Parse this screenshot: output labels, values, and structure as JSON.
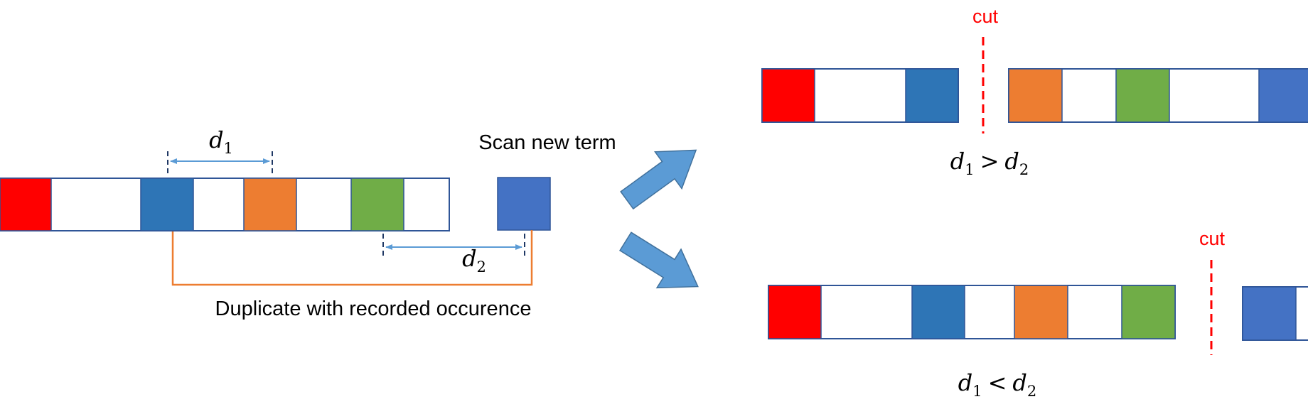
{
  "colors": {
    "red": "#ff0000",
    "darkblue": "#2e75b6",
    "orange": "#ed7d31",
    "green": "#70ad47",
    "lightblue": "#4472c4",
    "outline": "#2f5597",
    "dim": "#5b9bd5",
    "link": "#ed7d31",
    "arrow": "#5b9bd5",
    "cut": "#ff0000"
  },
  "left": {
    "scan_label": "Scan new term",
    "duplicate_label": "Duplicate with recorded occurence",
    "d1": {
      "var": "d",
      "sub": "1"
    },
    "d2": {
      "var": "d",
      "sub": "2"
    }
  },
  "top_result": {
    "cut_label": "cut",
    "relation": {
      "lhs": "d",
      "lhs_sub": "1",
      "op": ">",
      "rhs": "d",
      "rhs_sub": "2"
    }
  },
  "bottom_result": {
    "cut_label": "cut",
    "relation": {
      "lhs": "d",
      "lhs_sub": "1",
      "op": "<",
      "rhs": "d",
      "rhs_sub": "2"
    }
  }
}
